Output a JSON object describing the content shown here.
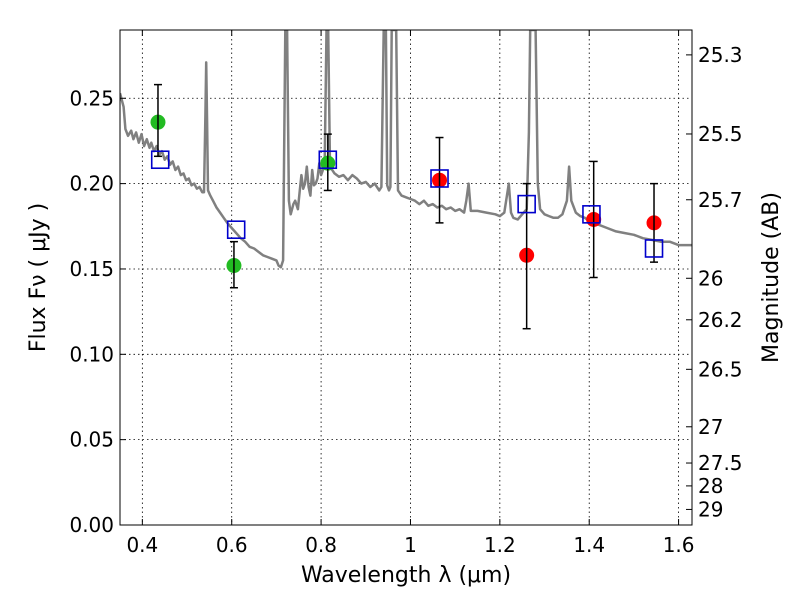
{
  "chart_data": {
    "type": "scatter",
    "title": "",
    "xlabel": "Wavelength  λ (μm)",
    "ylabel": "Flux  Fν  ( μJy )",
    "ylabel_right": "Magnitude (AB)",
    "xlim": [
      0.35,
      1.63
    ],
    "ylim": [
      0.0,
      0.29
    ],
    "grid": true,
    "x_ticks": [
      {
        "value": 0.4,
        "label": "0.4"
      },
      {
        "value": 0.6,
        "label": "0.6"
      },
      {
        "value": 0.8,
        "label": "0.8"
      },
      {
        "value": 1.0,
        "label": "1"
      },
      {
        "value": 1.2,
        "label": "1.2"
      },
      {
        "value": 1.4,
        "label": "1.4"
      },
      {
        "value": 1.6,
        "label": "1.6"
      }
    ],
    "y_ticks": [
      {
        "value": 0.0,
        "label": "0.00"
      },
      {
        "value": 0.05,
        "label": "0.05"
      },
      {
        "value": 0.1,
        "label": "0.10"
      },
      {
        "value": 0.15,
        "label": "0.15"
      },
      {
        "value": 0.2,
        "label": "0.20"
      },
      {
        "value": 0.25,
        "label": "0.25"
      }
    ],
    "y2_ticks": [
      {
        "mag": 25.3,
        "label": "25.3"
      },
      {
        "mag": 25.5,
        "label": "25.5"
      },
      {
        "mag": 25.7,
        "label": "25.7"
      },
      {
        "mag": 26.0,
        "label": "26"
      },
      {
        "mag": 26.2,
        "label": "26.2"
      },
      {
        "mag": 26.5,
        "label": "26.5"
      },
      {
        "mag": 27.0,
        "label": "27"
      },
      {
        "mag": 27.5,
        "label": "27.5"
      },
      {
        "mag": 28.0,
        "label": "28"
      },
      {
        "mag": 29.0,
        "label": "29"
      }
    ],
    "series": [
      {
        "name": "model SED",
        "kind": "line",
        "color": "#808080",
        "points": [
          [
            0.35,
            0.253
          ],
          [
            0.358,
            0.245
          ],
          [
            0.362,
            0.232
          ],
          [
            0.368,
            0.228
          ],
          [
            0.375,
            0.231
          ],
          [
            0.38,
            0.226
          ],
          [
            0.386,
            0.23
          ],
          [
            0.392,
            0.224
          ],
          [
            0.398,
            0.229
          ],
          [
            0.404,
            0.222
          ],
          [
            0.41,
            0.226
          ],
          [
            0.416,
            0.221
          ],
          [
            0.42,
            0.224
          ],
          [
            0.426,
            0.219
          ],
          [
            0.432,
            0.222
          ],
          [
            0.438,
            0.217
          ],
          [
            0.444,
            0.219
          ],
          [
            0.45,
            0.214
          ],
          [
            0.456,
            0.216
          ],
          [
            0.462,
            0.211
          ],
          [
            0.468,
            0.213
          ],
          [
            0.474,
            0.208
          ],
          [
            0.48,
            0.21
          ],
          [
            0.486,
            0.205
          ],
          [
            0.492,
            0.206
          ],
          [
            0.498,
            0.202
          ],
          [
            0.504,
            0.203
          ],
          [
            0.51,
            0.199
          ],
          [
            0.516,
            0.2
          ],
          [
            0.522,
            0.197
          ],
          [
            0.528,
            0.198
          ],
          [
            0.534,
            0.195
          ],
          [
            0.538,
            0.195
          ],
          [
            0.541,
            0.24
          ],
          [
            0.543,
            0.271
          ],
          [
            0.545,
            0.236
          ],
          [
            0.547,
            0.196
          ],
          [
            0.552,
            0.193
          ],
          [
            0.558,
            0.19
          ],
          [
            0.566,
            0.186
          ],
          [
            0.574,
            0.183
          ],
          [
            0.582,
            0.18
          ],
          [
            0.59,
            0.177
          ],
          [
            0.6,
            0.174
          ],
          [
            0.61,
            0.171
          ],
          [
            0.62,
            0.168
          ],
          [
            0.63,
            0.166
          ],
          [
            0.64,
            0.163
          ],
          [
            0.65,
            0.162
          ],
          [
            0.66,
            0.16
          ],
          [
            0.67,
            0.158
          ],
          [
            0.68,
            0.157
          ],
          [
            0.69,
            0.156
          ],
          [
            0.7,
            0.155
          ],
          [
            0.705,
            0.152
          ],
          [
            0.71,
            0.151
          ],
          [
            0.715,
            0.155
          ],
          [
            0.72,
            0.29
          ],
          [
            0.724,
            0.29
          ],
          [
            0.728,
            0.19
          ],
          [
            0.732,
            0.182
          ],
          [
            0.738,
            0.188
          ],
          [
            0.742,
            0.19
          ],
          [
            0.748,
            0.185
          ],
          [
            0.752,
            0.195
          ],
          [
            0.756,
            0.205
          ],
          [
            0.76,
            0.197
          ],
          [
            0.764,
            0.2
          ],
          [
            0.768,
            0.21
          ],
          [
            0.772,
            0.198
          ],
          [
            0.776,
            0.193
          ],
          [
            0.78,
            0.208
          ],
          [
            0.784,
            0.199
          ],
          [
            0.788,
            0.2
          ],
          [
            0.792,
            0.203
          ],
          [
            0.796,
            0.212
          ],
          [
            0.8,
            0.205
          ],
          [
            0.804,
            0.208
          ],
          [
            0.808,
            0.212
          ],
          [
            0.812,
            0.29
          ],
          [
            0.816,
            0.29
          ],
          [
            0.82,
            0.21
          ],
          [
            0.83,
            0.206
          ],
          [
            0.84,
            0.204
          ],
          [
            0.85,
            0.205
          ],
          [
            0.86,
            0.202
          ],
          [
            0.87,
            0.205
          ],
          [
            0.88,
            0.203
          ],
          [
            0.89,
            0.2
          ],
          [
            0.9,
            0.201
          ],
          [
            0.91,
            0.198
          ],
          [
            0.92,
            0.2
          ],
          [
            0.93,
            0.196
          ],
          [
            0.935,
            0.198
          ],
          [
            0.94,
            0.29
          ],
          [
            0.945,
            0.29
          ],
          [
            0.948,
            0.199
          ],
          [
            0.952,
            0.196
          ],
          [
            0.955,
            0.198
          ],
          [
            0.958,
            0.29
          ],
          [
            0.962,
            0.29
          ],
          [
            0.964,
            0.29
          ],
          [
            0.968,
            0.29
          ],
          [
            0.972,
            0.196
          ],
          [
            0.98,
            0.193
          ],
          [
            0.99,
            0.192
          ],
          [
            1.0,
            0.191
          ],
          [
            1.01,
            0.19
          ],
          [
            1.02,
            0.188
          ],
          [
            1.03,
            0.19
          ],
          [
            1.04,
            0.187
          ],
          [
            1.05,
            0.188
          ],
          [
            1.06,
            0.186
          ],
          [
            1.07,
            0.187
          ],
          [
            1.08,
            0.185
          ],
          [
            1.09,
            0.186
          ],
          [
            1.1,
            0.184
          ],
          [
            1.11,
            0.185
          ],
          [
            1.12,
            0.183
          ],
          [
            1.125,
            0.19
          ],
          [
            1.13,
            0.2
          ],
          [
            1.135,
            0.184
          ],
          [
            1.15,
            0.184
          ],
          [
            1.17,
            0.183
          ],
          [
            1.19,
            0.182
          ],
          [
            1.2,
            0.181
          ],
          [
            1.21,
            0.183
          ],
          [
            1.22,
            0.2
          ],
          [
            1.225,
            0.183
          ],
          [
            1.23,
            0.18
          ],
          [
            1.24,
            0.179
          ],
          [
            1.25,
            0.182
          ],
          [
            1.26,
            0.185
          ],
          [
            1.265,
            0.23
          ],
          [
            1.268,
            0.29
          ],
          [
            1.272,
            0.29
          ],
          [
            1.276,
            0.29
          ],
          [
            1.28,
            0.29
          ],
          [
            1.285,
            0.2
          ],
          [
            1.29,
            0.185
          ],
          [
            1.3,
            0.182
          ],
          [
            1.31,
            0.181
          ],
          [
            1.32,
            0.18
          ],
          [
            1.33,
            0.18
          ],
          [
            1.34,
            0.182
          ],
          [
            1.35,
            0.19
          ],
          [
            1.355,
            0.21
          ],
          [
            1.36,
            0.19
          ],
          [
            1.37,
            0.183
          ],
          [
            1.38,
            0.181
          ],
          [
            1.39,
            0.18
          ],
          [
            1.4,
            0.178
          ],
          [
            1.42,
            0.176
          ],
          [
            1.44,
            0.174
          ],
          [
            1.46,
            0.172
          ],
          [
            1.48,
            0.171
          ],
          [
            1.5,
            0.17
          ],
          [
            1.52,
            0.168
          ],
          [
            1.54,
            0.167
          ],
          [
            1.56,
            0.166
          ],
          [
            1.58,
            0.166
          ],
          [
            1.6,
            0.164
          ],
          [
            1.63,
            0.164
          ]
        ]
      },
      {
        "name": "green observations",
        "kind": "points",
        "marker": "circle",
        "color": "#22bb22",
        "points": [
          {
            "x": 0.435,
            "y": 0.236
          },
          {
            "x": 0.605,
            "y": 0.152
          },
          {
            "x": 0.815,
            "y": 0.212
          }
        ]
      },
      {
        "name": "red observations",
        "kind": "points",
        "marker": "circle",
        "color": "#ff0000",
        "points": [
          {
            "x": 1.065,
            "y": 0.202
          },
          {
            "x": 1.26,
            "y": 0.158
          },
          {
            "x": 1.41,
            "y": 0.179
          },
          {
            "x": 1.545,
            "y": 0.177
          }
        ]
      },
      {
        "name": "error bars",
        "kind": "errorbars",
        "color": "#000000",
        "bars": [
          {
            "x": 0.435,
            "lo": 0.216,
            "hi": 0.258
          },
          {
            "x": 0.605,
            "lo": 0.139,
            "hi": 0.166
          },
          {
            "x": 0.815,
            "lo": 0.196,
            "hi": 0.229
          },
          {
            "x": 1.065,
            "lo": 0.177,
            "hi": 0.227
          },
          {
            "x": 1.26,
            "lo": 0.115,
            "hi": 0.2
          },
          {
            "x": 1.41,
            "lo": 0.145,
            "hi": 0.213
          },
          {
            "x": 1.545,
            "lo": 0.154,
            "hi": 0.2
          }
        ]
      },
      {
        "name": "model photometry",
        "kind": "points",
        "marker": "square",
        "color": "#0000cc",
        "points": [
          {
            "x": 0.44,
            "y": 0.214
          },
          {
            "x": 0.61,
            "y": 0.173
          },
          {
            "x": 0.815,
            "y": 0.214
          },
          {
            "x": 1.065,
            "y": 0.203
          },
          {
            "x": 1.26,
            "y": 0.188
          },
          {
            "x": 1.405,
            "y": 0.182
          },
          {
            "x": 1.545,
            "y": 0.162
          }
        ]
      }
    ]
  }
}
